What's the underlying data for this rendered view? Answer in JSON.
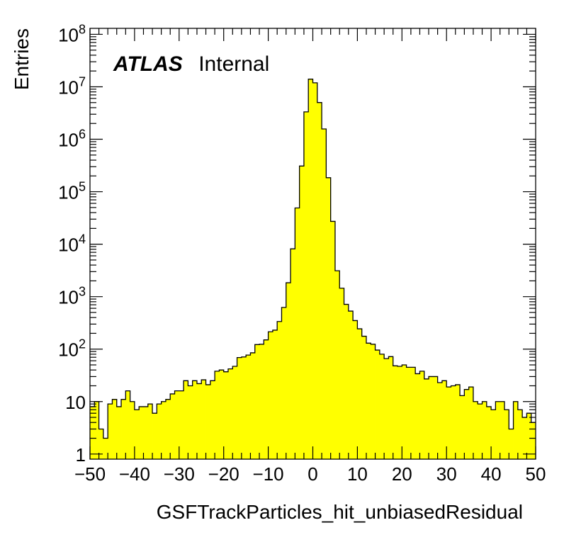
{
  "chart_data": {
    "type": "bar",
    "title": "",
    "xlabel": "GSFTrackParticles_hit_unbiasedResidual",
    "ylabel": "Entries",
    "xlim": [
      -50,
      50
    ],
    "ylim": [
      0.8,
      130000000
    ],
    "yscale": "log",
    "grid": false,
    "legend": "none",
    "fill_color": "#ffff00",
    "line_color": "#000000",
    "label": {
      "bold": "ATLAS",
      "normal": "Internal"
    },
    "x_ticks": [
      {
        "value": -50,
        "label": "−50"
      },
      {
        "value": -40,
        "label": "−40"
      },
      {
        "value": -30,
        "label": "−30"
      },
      {
        "value": -20,
        "label": "−20"
      },
      {
        "value": -10,
        "label": "−10"
      },
      {
        "value": 0,
        "label": "0"
      },
      {
        "value": 10,
        "label": "10"
      },
      {
        "value": 20,
        "label": "20"
      },
      {
        "value": 30,
        "label": "30"
      },
      {
        "value": 40,
        "label": "40"
      },
      {
        "value": 50,
        "label": "50"
      }
    ],
    "y_ticks": [
      {
        "value": 1,
        "base": "1",
        "exp": ""
      },
      {
        "value": 10,
        "base": "10",
        "exp": ""
      },
      {
        "value": 100,
        "base": "10",
        "exp": "2"
      },
      {
        "value": 1000,
        "base": "10",
        "exp": "3"
      },
      {
        "value": 10000,
        "base": "10",
        "exp": "4"
      },
      {
        "value": 100000,
        "base": "10",
        "exp": "5"
      },
      {
        "value": 1000000,
        "base": "10",
        "exp": "6"
      },
      {
        "value": 10000000,
        "base": "10",
        "exp": "7"
      },
      {
        "value": 100000000,
        "base": "10",
        "exp": "8"
      }
    ],
    "bin_width": 1,
    "bin_low_edges": [
      -50,
      -49,
      -48,
      -47,
      -46,
      -45,
      -44,
      -43,
      -42,
      -41,
      -40,
      -39,
      -38,
      -37,
      -36,
      -35,
      -34,
      -33,
      -32,
      -31,
      -30,
      -29,
      -28,
      -27,
      -26,
      -25,
      -24,
      -23,
      -22,
      -21,
      -20,
      -19,
      -18,
      -17,
      -16,
      -15,
      -14,
      -13,
      -12,
      -11,
      -10,
      -9,
      -8,
      -7,
      -6,
      -5,
      -4,
      -3,
      -2,
      -1,
      0,
      1,
      2,
      3,
      4,
      5,
      6,
      7,
      8,
      9,
      10,
      11,
      12,
      13,
      14,
      15,
      16,
      17,
      18,
      19,
      20,
      21,
      22,
      23,
      24,
      25,
      26,
      27,
      28,
      29,
      30,
      31,
      32,
      33,
      34,
      35,
      36,
      37,
      38,
      39,
      40,
      41,
      42,
      43,
      44,
      45,
      46,
      47,
      48,
      49
    ],
    "values": [
      8,
      10,
      3,
      2,
      9,
      11,
      8,
      11,
      16,
      10,
      7,
      8,
      8,
      9,
      6,
      9,
      10,
      11,
      14,
      16,
      16,
      25,
      20,
      25,
      22,
      26,
      21,
      25,
      38,
      40,
      37,
      42,
      47,
      69,
      71,
      77,
      85,
      122,
      124,
      150,
      214,
      230,
      336,
      623,
      1840,
      8160,
      49000,
      309000,
      3330000,
      14000000,
      11900000,
      5010000,
      1570000,
      185000,
      27200,
      3120,
      1450,
      713,
      531,
      350,
      244,
      176,
      130,
      124,
      96,
      80,
      66,
      72,
      48,
      47,
      50,
      45,
      45,
      34,
      38,
      27,
      30,
      30,
      23,
      25,
      19,
      20,
      21,
      13,
      17,
      19,
      10,
      9,
      10,
      8,
      7,
      10,
      10,
      7,
      3,
      10,
      7,
      5,
      6,
      4
    ]
  }
}
